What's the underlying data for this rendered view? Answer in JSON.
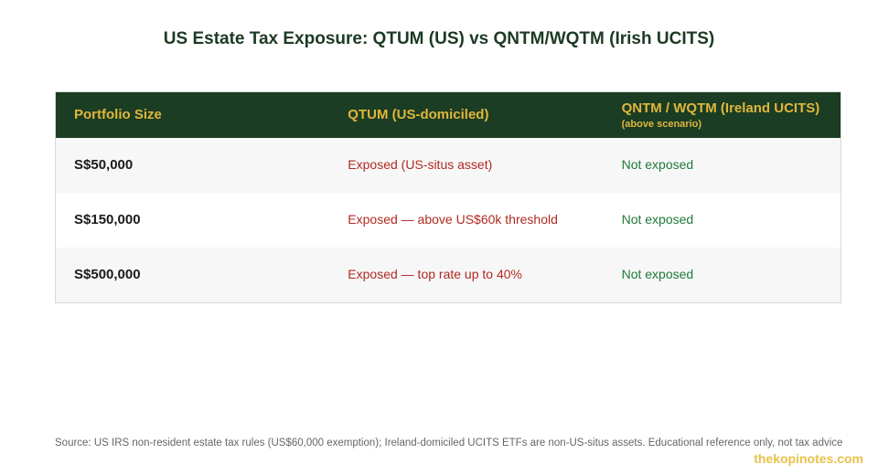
{
  "title": "US Estate Tax Exposure: QTUM (US) vs QNTM/WQTM (Irish UCITS)",
  "table": {
    "headers": {
      "col1": "Portfolio Size",
      "col2": "QTUM (US-domiciled)",
      "col3": "QNTM / WQTM (Ireland UCITS)",
      "col3_sub": "(above scenario)"
    },
    "rows": [
      {
        "size": "S$50,000",
        "qtum": "Exposed (US-situs asset)",
        "qntm": "Not exposed"
      },
      {
        "size": "S$150,000",
        "qtum": "Exposed — above US$60k threshold",
        "qntm": "Not exposed"
      },
      {
        "size": "S$500,000",
        "qtum": "Exposed — top rate up to 40%",
        "qntm": "Not exposed"
      }
    ]
  },
  "source": "Source: US IRS non-resident estate tax rules (US$60,000 exemption); Ireland-domiciled UCITS ETFs are non-US-situs assets. Educational reference only, not tax advice",
  "brand": "thekopinotes.com",
  "colors": {
    "header_bg": "#1b3d23",
    "header_text": "#e0b63c",
    "exposed": "#b02a21",
    "not_exposed": "#1f7a3a",
    "brand": "#e8c24a"
  }
}
